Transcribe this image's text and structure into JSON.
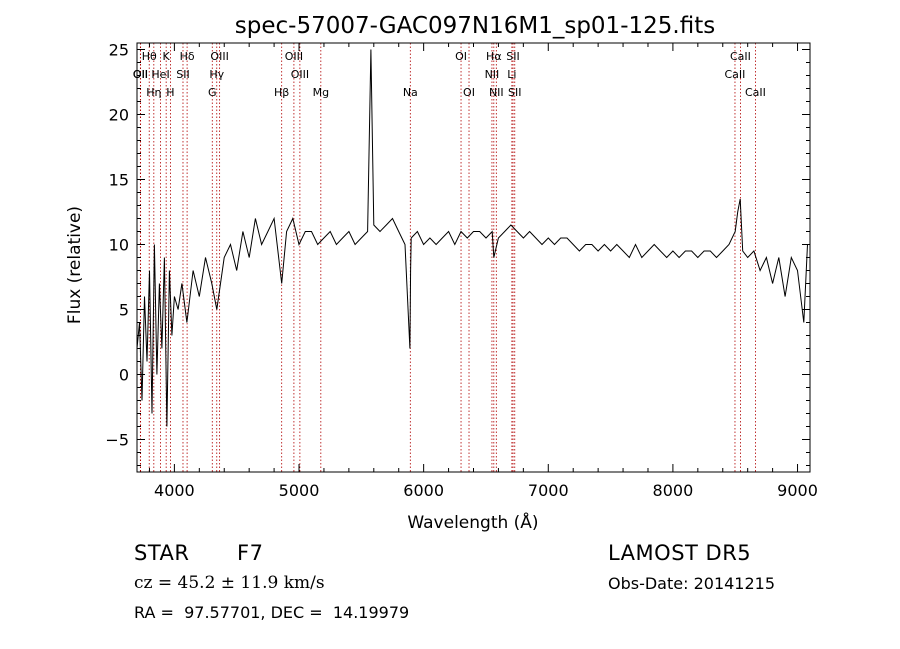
{
  "chart_data": {
    "type": "line",
    "title": "spec-57007-GAC097N16M1_sp01-125.fits",
    "xlabel": "Wavelength (Å)",
    "ylabel": "Flux (relative)",
    "xlim": [
      3700,
      9100
    ],
    "ylim": [
      -7.5,
      25.5
    ],
    "xticks": [
      4000,
      5000,
      6000,
      7000,
      8000,
      9000
    ],
    "yticks": [
      -5,
      0,
      5,
      10,
      15,
      20,
      25
    ],
    "grid": false,
    "series": [
      {
        "x": [
          3700,
          3720,
          3740,
          3760,
          3780,
          3800,
          3820,
          3840,
          3860,
          3880,
          3900,
          3920,
          3940,
          3960,
          3980,
          4000,
          4030,
          4060,
          4100,
          4150,
          4200,
          4250,
          4300,
          4340,
          4400,
          4450,
          4500,
          4550,
          4600,
          4650,
          4700,
          4750,
          4800,
          4861,
          4900,
          4950,
          5000,
          5050,
          5100,
          5150,
          5200,
          5250,
          5300,
          5350,
          5400,
          5450,
          5500,
          5550,
          5577,
          5600,
          5650,
          5700,
          5750,
          5800,
          5850,
          5890,
          5895,
          5900,
          5950,
          6000,
          6050,
          6100,
          6150,
          6200,
          6250,
          6300,
          6350,
          6400,
          6450,
          6500,
          6550,
          6563,
          6600,
          6650,
          6700,
          6750,
          6800,
          6850,
          6900,
          6950,
          7000,
          7050,
          7100,
          7150,
          7200,
          7250,
          7300,
          7350,
          7400,
          7450,
          7500,
          7550,
          7600,
          7650,
          7700,
          7750,
          7800,
          7850,
          7900,
          7950,
          8000,
          8050,
          8100,
          8150,
          8200,
          8250,
          8300,
          8350,
          8400,
          8450,
          8500,
          8520,
          8540,
          8560,
          8600,
          8650,
          8700,
          8750,
          8800,
          8850,
          8900,
          8950,
          9000,
          9050,
          9080
        ],
        "y": [
          2,
          4,
          -2,
          6,
          1,
          8,
          -3,
          10,
          0,
          7,
          2,
          9,
          -4,
          8,
          3,
          6,
          5,
          7,
          4,
          8,
          6,
          9,
          7,
          5,
          9,
          10,
          8,
          11,
          9,
          12,
          10,
          11,
          12,
          7,
          11,
          12,
          10,
          11,
          11,
          10,
          10.5,
          11,
          10,
          10.5,
          11,
          10,
          10.5,
          11,
          25,
          11.5,
          11,
          11.5,
          12,
          11,
          10,
          2,
          8,
          10.5,
          11,
          10,
          10.5,
          10,
          10.5,
          11,
          10,
          11,
          10.5,
          11,
          11,
          10.5,
          11,
          9,
          10.5,
          11,
          11.5,
          11,
          10.5,
          11,
          10.5,
          10,
          10.5,
          10,
          10.5,
          10.5,
          10,
          9.5,
          10,
          10,
          9.5,
          10,
          9.5,
          10,
          9.5,
          9,
          10,
          9,
          9.5,
          10,
          9.5,
          9,
          9.5,
          9,
          9.5,
          9.5,
          9,
          9.5,
          9.5,
          9,
          9.5,
          10,
          11,
          12.5,
          13.5,
          9.5,
          9,
          9.5,
          8,
          9,
          7,
          9,
          6,
          9,
          8,
          4,
          10
        ]
      }
    ],
    "line_groups": [
      {
        "name": "Hθ",
        "wl": 3798
      },
      {
        "name": "K",
        "wl": 3934
      },
      {
        "name": "Hδ",
        "wl": 4102
      },
      {
        "name": "OIII",
        "wl": 4363
      },
      {
        "name": "OIII",
        "wl": 4959
      },
      {
        "name": "OI",
        "wl": 6300
      },
      {
        "name": "Hα",
        "wl": 6563
      },
      {
        "name": "SII",
        "wl": 6717
      },
      {
        "name": "CaII",
        "wl": 8542
      },
      {
        "name": "OII",
        "wl": 3727
      },
      {
        "name": "HeI",
        "wl": 3889
      },
      {
        "name": "SII",
        "wl": 4069
      },
      {
        "name": "Hγ",
        "wl": 4340
      },
      {
        "name": "OIII",
        "wl": 5007
      },
      {
        "name": "NII",
        "wl": 6548
      },
      {
        "name": "Li",
        "wl": 6708
      },
      {
        "name": "CaII",
        "wl": 8498
      },
      {
        "name": "OII",
        "wl": 3729
      },
      {
        "name": "Hη",
        "wl": 3835
      },
      {
        "name": "H",
        "wl": 3968
      },
      {
        "name": "G",
        "wl": 4304
      },
      {
        "name": "Hβ",
        "wl": 4861
      },
      {
        "name": "Mg",
        "wl": 5175
      },
      {
        "name": "Na",
        "wl": 5893
      },
      {
        "name": "OI",
        "wl": 6364
      },
      {
        "name": "NII",
        "wl": 6583
      },
      {
        "name": "SII",
        "wl": 6731
      },
      {
        "name": "CaII",
        "wl": 8662
      }
    ]
  },
  "info": {
    "class_label": "STAR",
    "subclass_label": "F7",
    "survey": "LAMOST DR5",
    "cz": "cz = 45.2 ± 11.9 km/s",
    "obs_date": "Obs-Date: 20141215",
    "coords": "RA =  97.57701, DEC =  14.19979"
  }
}
